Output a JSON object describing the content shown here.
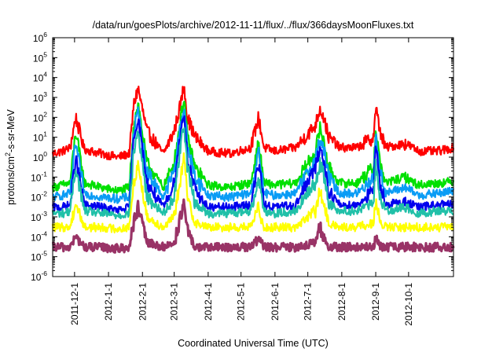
{
  "chart_data": {
    "type": "line",
    "title": "/data/run/goesPlots/archive/2012-11-11/flux/../flux/366daysMoonFluxes.txt",
    "xlabel": "Coordinated Universal Time (UTC)",
    "ylabel": "protons/cm²-s-sr-MeV",
    "ylabel_parts": {
      "before": "protons/cm",
      "sup": "2",
      "after": "-s-sr-MeV"
    },
    "y_scale": "log",
    "ylim": [
      1e-06,
      1000000.0
    ],
    "xlim": [
      "2011-11-11",
      "2012-11-11"
    ],
    "y_ticks": [
      {
        "base": "10",
        "exp": "-6",
        "value": 1e-06
      },
      {
        "base": "10",
        "exp": "-5",
        "value": 1e-05
      },
      {
        "base": "10",
        "exp": "-4",
        "value": 0.0001
      },
      {
        "base": "10",
        "exp": "-3",
        "value": 0.001
      },
      {
        "base": "10",
        "exp": "-2",
        "value": 0.01
      },
      {
        "base": "10",
        "exp": "-1",
        "value": 0.1
      },
      {
        "base": "10",
        "exp": "0",
        "value": 1
      },
      {
        "base": "10",
        "exp": "1",
        "value": 10
      },
      {
        "base": "10",
        "exp": "2",
        "value": 100
      },
      {
        "base": "10",
        "exp": "3",
        "value": 1000
      },
      {
        "base": "10",
        "exp": "4",
        "value": 10000
      },
      {
        "base": "10",
        "exp": "5",
        "value": 100000
      },
      {
        "base": "10",
        "exp": "6",
        "value": 1000000
      }
    ],
    "x_ticks": [
      "2011-12-1",
      "2012-1-1",
      "2012-2-1",
      "2012-3-1",
      "2012-4-1",
      "2012-5-1",
      "2012-6-1",
      "2012-7-1",
      "2012-8-1",
      "2012-9-1",
      "2012-10-1"
    ],
    "grid": false,
    "legend": "none",
    "series": [
      {
        "color": "#ff0000",
        "baseline": 1.5,
        "x": [
          "2011-11-11",
          "2011-11-20",
          "2011-11-27",
          "2011-12-02",
          "2011-12-10",
          "2011-12-25",
          "2012-01-10",
          "2012-01-20",
          "2012-01-24",
          "2012-01-28",
          "2012-02-05",
          "2012-02-20",
          "2012-03-01",
          "2012-03-07",
          "2012-03-10",
          "2012-03-13",
          "2012-03-20",
          "2012-04-01",
          "2012-04-20",
          "2012-05-10",
          "2012-05-17",
          "2012-05-22",
          "2012-06-01",
          "2012-06-20",
          "2012-07-08",
          "2012-07-12",
          "2012-07-16",
          "2012-07-20",
          "2012-07-30",
          "2012-08-15",
          "2012-08-30",
          "2012-09-01",
          "2012-09-05",
          "2012-09-10",
          "2012-09-28",
          "2012-10-10",
          "2012-10-28",
          "2012-11-11"
        ],
        "y": [
          1.5,
          2,
          3,
          100,
          2.5,
          1.5,
          1,
          1.5,
          400,
          3000,
          20,
          1.5,
          20,
          500,
          5000,
          100,
          10,
          2,
          1.5,
          3,
          100,
          3,
          2,
          3,
          40,
          300,
          80,
          10,
          3,
          3,
          10,
          300,
          20,
          3,
          5,
          2,
          2,
          3
        ]
      },
      {
        "color": "#00e000",
        "baseline": 0.03,
        "x": [
          "2011-11-11",
          "2011-11-20",
          "2011-11-27",
          "2011-12-02",
          "2011-12-10",
          "2011-12-25",
          "2012-01-10",
          "2012-01-20",
          "2012-01-24",
          "2012-01-28",
          "2012-02-05",
          "2012-02-20",
          "2012-03-01",
          "2012-03-07",
          "2012-03-10",
          "2012-03-13",
          "2012-03-20",
          "2012-04-01",
          "2012-04-20",
          "2012-05-10",
          "2012-05-17",
          "2012-05-22",
          "2012-06-01",
          "2012-06-20",
          "2012-07-08",
          "2012-07-12",
          "2012-07-16",
          "2012-07-20",
          "2012-07-30",
          "2012-08-15",
          "2012-08-30",
          "2012-09-01",
          "2012-09-05",
          "2012-09-10",
          "2012-09-28",
          "2012-10-10",
          "2012-10-28",
          "2012-11-11"
        ],
        "y": [
          0.03,
          0.04,
          0.05,
          20,
          0.05,
          0.03,
          0.02,
          0.03,
          50,
          500,
          0.5,
          0.03,
          0.5,
          100,
          1000,
          10,
          0.3,
          0.04,
          0.03,
          0.05,
          5,
          0.05,
          0.04,
          0.05,
          2,
          30,
          5,
          0.3,
          0.05,
          0.05,
          0.3,
          30,
          0.5,
          0.05,
          0.1,
          0.04,
          0.05,
          0.06
        ]
      },
      {
        "color": "#0a9cf5",
        "baseline": 0.01,
        "x": [
          "2011-11-11",
          "2011-11-20",
          "2011-11-27",
          "2011-12-02",
          "2011-12-10",
          "2011-12-25",
          "2012-01-10",
          "2012-01-20",
          "2012-01-24",
          "2012-01-28",
          "2012-02-05",
          "2012-02-20",
          "2012-03-01",
          "2012-03-07",
          "2012-03-10",
          "2012-03-13",
          "2012-03-20",
          "2012-04-01",
          "2012-04-20",
          "2012-05-10",
          "2012-05-17",
          "2012-05-22",
          "2012-06-01",
          "2012-06-20",
          "2012-07-08",
          "2012-07-12",
          "2012-07-16",
          "2012-07-20",
          "2012-07-30",
          "2012-08-15",
          "2012-08-30",
          "2012-09-01",
          "2012-09-05",
          "2012-09-10",
          "2012-09-28",
          "2012-10-10",
          "2012-10-28",
          "2012-11-11"
        ],
        "y": [
          0.01,
          0.012,
          0.015,
          5,
          0.015,
          0.01,
          0.008,
          0.01,
          20,
          200,
          0.2,
          0.01,
          0.2,
          40,
          400,
          4,
          0.1,
          0.012,
          0.01,
          0.015,
          2,
          0.015,
          0.012,
          0.015,
          0.8,
          10,
          2,
          0.1,
          0.015,
          0.015,
          0.1,
          10,
          0.2,
          0.015,
          0.03,
          0.012,
          0.015,
          0.02
        ]
      },
      {
        "color": "#0000ee",
        "baseline": 0.003,
        "x": [
          "2011-11-11",
          "2011-11-20",
          "2011-11-27",
          "2011-12-02",
          "2011-12-10",
          "2011-12-25",
          "2012-01-10",
          "2012-01-20",
          "2012-01-24",
          "2012-01-28",
          "2012-02-05",
          "2012-02-20",
          "2012-03-01",
          "2012-03-07",
          "2012-03-10",
          "2012-03-13",
          "2012-03-20",
          "2012-04-01",
          "2012-04-20",
          "2012-05-10",
          "2012-05-17",
          "2012-05-22",
          "2012-06-01",
          "2012-06-20",
          "2012-07-08",
          "2012-07-12",
          "2012-07-16",
          "2012-07-20",
          "2012-07-30",
          "2012-08-15",
          "2012-08-30",
          "2012-09-01",
          "2012-09-05",
          "2012-09-10",
          "2012-09-28",
          "2012-10-10",
          "2012-10-28",
          "2012-11-11"
        ],
        "y": [
          0.003,
          0.003,
          0.004,
          1,
          0.004,
          0.003,
          0.002,
          0.003,
          10,
          100,
          0.05,
          0.003,
          0.05,
          20,
          200,
          1,
          0.02,
          0.003,
          0.003,
          0.004,
          0.5,
          0.004,
          0.003,
          0.004,
          0.3,
          3,
          0.5,
          0.02,
          0.004,
          0.004,
          0.02,
          3,
          0.05,
          0.004,
          0.006,
          0.003,
          0.004,
          0.004
        ]
      },
      {
        "color": "#20c0a8",
        "baseline": 0.0015,
        "x": [
          "2011-11-11",
          "2011-11-20",
          "2011-11-27",
          "2011-12-02",
          "2011-12-10",
          "2011-12-25",
          "2012-01-10",
          "2012-01-20",
          "2012-01-24",
          "2012-01-28",
          "2012-02-05",
          "2012-02-20",
          "2012-03-01",
          "2012-03-07",
          "2012-03-10",
          "2012-03-13",
          "2012-03-20",
          "2012-04-01",
          "2012-04-20",
          "2012-05-10",
          "2012-05-17",
          "2012-05-22",
          "2012-06-01",
          "2012-06-20",
          "2012-07-08",
          "2012-07-12",
          "2012-07-16",
          "2012-07-20",
          "2012-07-30",
          "2012-08-15",
          "2012-08-30",
          "2012-09-01",
          "2012-09-05",
          "2012-09-10",
          "2012-09-28",
          "2012-10-10",
          "2012-10-28",
          "2012-11-11"
        ],
        "y": [
          0.0015,
          0.0015,
          0.002,
          0.3,
          0.002,
          0.0015,
          0.0012,
          0.0015,
          2,
          20,
          0.01,
          0.0015,
          0.01,
          5,
          50,
          0.3,
          0.005,
          0.0015,
          0.0015,
          0.002,
          0.1,
          0.002,
          0.0015,
          0.002,
          0.05,
          0.5,
          0.1,
          0.005,
          0.002,
          0.002,
          0.005,
          0.5,
          0.01,
          0.002,
          0.003,
          0.0015,
          0.002,
          0.002
        ]
      },
      {
        "color": "#ffff00",
        "baseline": 0.0003,
        "x": [
          "2011-11-11",
          "2011-11-20",
          "2011-11-27",
          "2011-12-02",
          "2011-12-10",
          "2011-12-25",
          "2012-01-10",
          "2012-01-20",
          "2012-01-24",
          "2012-01-28",
          "2012-02-05",
          "2012-02-20",
          "2012-03-01",
          "2012-03-07",
          "2012-03-10",
          "2012-03-13",
          "2012-03-20",
          "2012-04-01",
          "2012-04-20",
          "2012-05-10",
          "2012-05-17",
          "2012-05-22",
          "2012-06-01",
          "2012-06-20",
          "2012-07-08",
          "2012-07-12",
          "2012-07-16",
          "2012-07-20",
          "2012-07-30",
          "2012-08-15",
          "2012-08-30",
          "2012-09-01",
          "2012-09-05",
          "2012-09-10",
          "2012-09-28",
          "2012-10-10",
          "2012-10-28",
          "2012-11-11"
        ],
        "y": [
          0.0003,
          0.0003,
          0.0003,
          0.005,
          0.0003,
          0.0003,
          0.00025,
          0.0003,
          0.05,
          0.5,
          0.001,
          0.0003,
          0.001,
          0.1,
          1,
          0.01,
          0.0005,
          0.0003,
          0.0003,
          0.0003,
          0.003,
          0.0003,
          0.0003,
          0.0003,
          0.002,
          0.02,
          0.003,
          0.0005,
          0.0003,
          0.0003,
          0.0005,
          0.005,
          0.0005,
          0.0003,
          0.0003,
          0.0003,
          0.0003,
          0.0003
        ]
      },
      {
        "color": "#993366",
        "baseline": 3e-05,
        "x": [
          "2011-11-11",
          "2011-11-20",
          "2011-11-27",
          "2011-12-02",
          "2011-12-10",
          "2011-12-25",
          "2012-01-10",
          "2012-01-20",
          "2012-01-24",
          "2012-01-28",
          "2012-02-05",
          "2012-02-20",
          "2012-03-01",
          "2012-03-07",
          "2012-03-10",
          "2012-03-13",
          "2012-03-20",
          "2012-04-01",
          "2012-04-20",
          "2012-05-10",
          "2012-05-17",
          "2012-05-22",
          "2012-06-01",
          "2012-06-20",
          "2012-07-08",
          "2012-07-12",
          "2012-07-16",
          "2012-07-20",
          "2012-07-30",
          "2012-08-15",
          "2012-08-30",
          "2012-09-01",
          "2012-09-05",
          "2012-09-10",
          "2012-09-28",
          "2012-10-10",
          "2012-10-28",
          "2012-11-11"
        ],
        "y": [
          3e-05,
          3e-05,
          3e-05,
          0.0001,
          3e-05,
          3e-05,
          2.5e-05,
          3e-05,
          0.0005,
          0.003,
          5e-05,
          3e-05,
          5e-05,
          0.001,
          0.005,
          0.0002,
          3e-05,
          3e-05,
          3e-05,
          3e-05,
          8e-05,
          3e-05,
          3e-05,
          3e-05,
          5e-05,
          0.0003,
          8e-05,
          3e-05,
          3e-05,
          3e-05,
          3e-05,
          0.0001,
          3e-05,
          3e-05,
          3e-05,
          3e-05,
          3e-05,
          3e-05
        ]
      }
    ]
  }
}
